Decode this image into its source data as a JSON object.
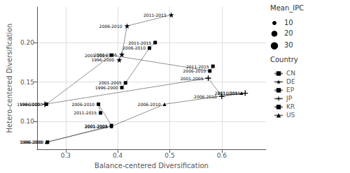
{
  "chart_data": {
    "type": "line",
    "x_label": "Balance-centered Diversification",
    "y_label": "Hetero-centered Diversification",
    "xlim": [
      0.245,
      0.685
    ],
    "ylim": [
      0.065,
      0.245
    ],
    "xticks": [
      0.3,
      0.4,
      0.5,
      0.6
    ],
    "yticks": [
      {
        "value": 0.1,
        "label": "0.10"
      },
      {
        "value": 0.15,
        "label": "0.15"
      },
      {
        "value": 0.2,
        "label": "0.20"
      }
    ],
    "grid": true,
    "legend": "right",
    "legend_title": "Country",
    "legend_order": [
      "CN",
      "DE",
      "EP",
      "JP",
      "KR",
      "US"
    ],
    "sizes": {
      "title": "Mean_IPC",
      "values": [
        10,
        20,
        30
      ]
    },
    "series": [
      {
        "name": "DE",
        "marker": "star",
        "color": "#000000",
        "x": [
          0.403,
          0.408,
          0.418,
          0.503
        ],
        "values": [
          0.178,
          0.185,
          0.221,
          0.235
        ],
        "labels": [
          "1996-2000",
          "2001-2005",
          "2006-2010",
          "2011-2015"
        ]
      },
      {
        "name": "EP",
        "marker": "square",
        "color": "#000000",
        "x": [
          0.408,
          0.415,
          0.461,
          0.472
        ],
        "values": [
          0.143,
          0.149,
          0.193,
          0.2
        ],
        "labels": [
          "1996-2000",
          "2001-2005",
          "2006-2010",
          "2011-2015"
        ]
      },
      {
        "name": "KR",
        "marker": "square",
        "color": "#000000",
        "x": [
          0.263,
          0.388,
          0.577,
          0.583
        ],
        "values": [
          0.122,
          0.184,
          0.164,
          0.17
        ],
        "labels": [
          "1996-2000",
          "2001-2005",
          "2006-2010",
          "2011-2015"
        ]
      },
      {
        "name": "JP",
        "marker": "plus",
        "color": "#000000",
        "x": [
          0.26,
          0.574,
          0.6,
          0.645
        ],
        "values": [
          0.122,
          0.155,
          0.132,
          0.136
        ],
        "labels": [
          "1996-2000",
          "2001-2005",
          "2006-2010",
          "2011-2015"
        ]
      },
      {
        "name": "CN",
        "marker": "square",
        "color": "#000000",
        "x": [
          0.265,
          0.388,
          0.363,
          0.367
        ],
        "values": [
          0.074,
          0.095,
          0.122,
          0.111
        ],
        "labels": [
          "1996-2000",
          "2001-2005",
          "2006-2010",
          "2011-2015"
        ]
      },
      {
        "name": "US",
        "marker": "triangle",
        "color": "#000000",
        "x": [
          0.263,
          0.388,
          0.49,
          0.638
        ],
        "values": [
          0.074,
          0.094,
          0.122,
          0.136
        ],
        "labels": [
          "1996-2000",
          "2001-2005",
          "2006-2010",
          "2011-2015"
        ]
      }
    ]
  }
}
